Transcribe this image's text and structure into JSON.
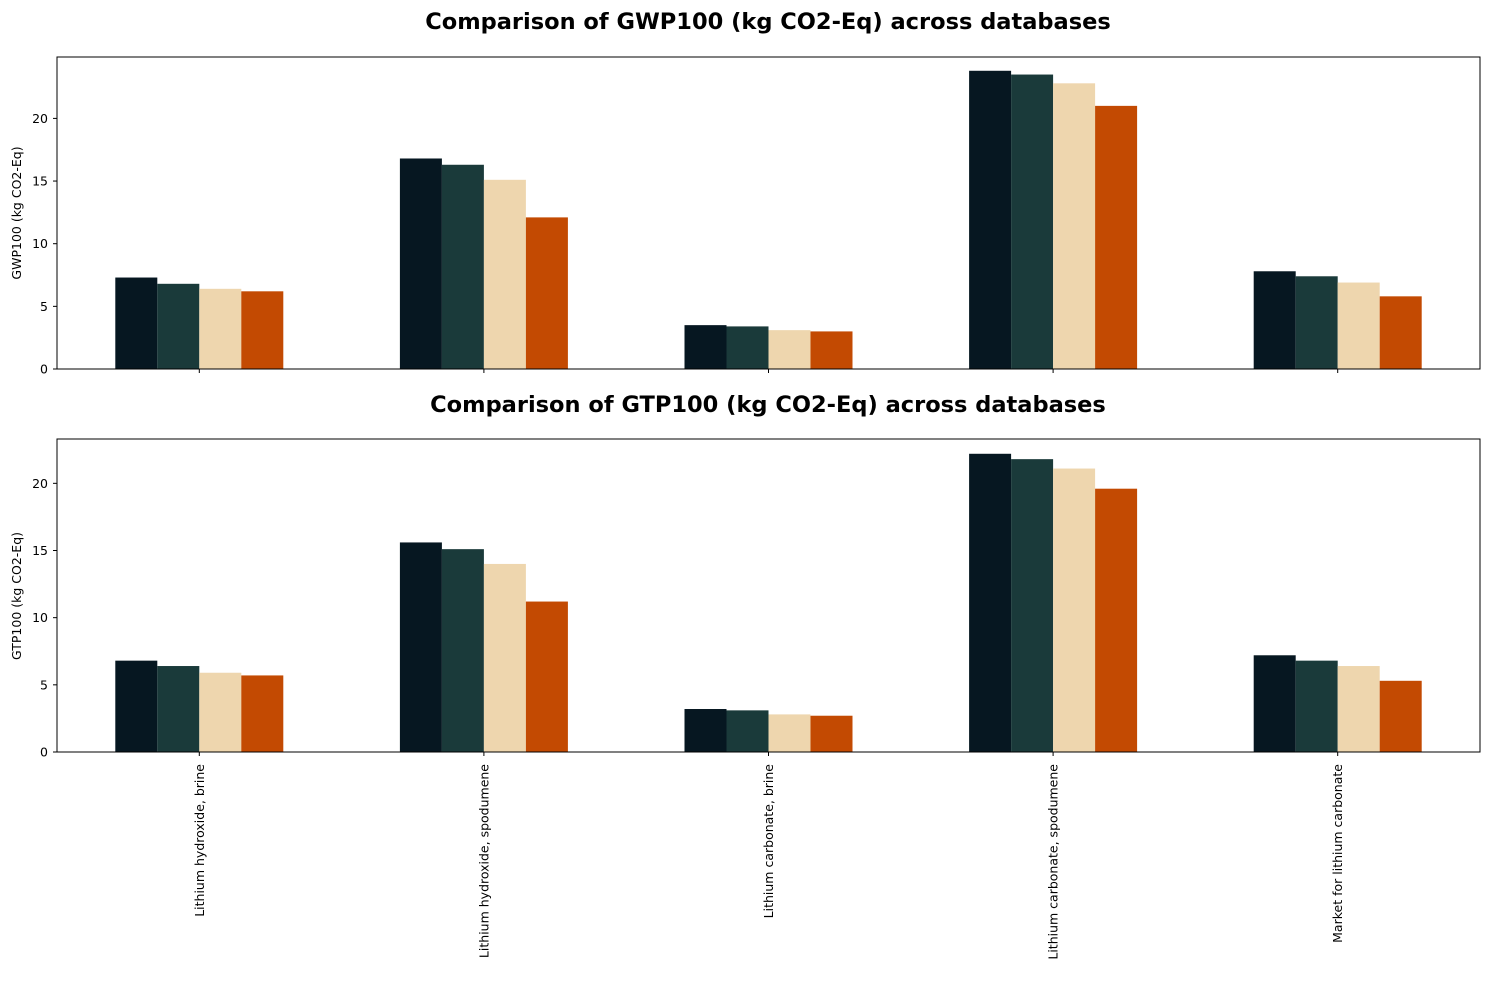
{
  "chart_data": [
    {
      "type": "bar",
      "title": "Comparison of GWP100 (kg CO2-Eq) across databases",
      "xlabel": "",
      "ylabel": "GWP100 (kg CO2-Eq)",
      "ylim": [
        0,
        24.9
      ],
      "yticks": [
        0,
        5,
        10,
        15,
        20
      ],
      "show_category_labels": false,
      "categories": [
        "Lithium hydroxide, brine",
        "Lithium hydroxide, spodumene",
        "Lithium carbonate, brine",
        "Lithium carbonate, spodumene",
        "Market for lithium carbonate"
      ],
      "series": [
        {
          "color": "#061721",
          "values": [
            7.3,
            16.8,
            3.5,
            23.8,
            7.8
          ]
        },
        {
          "color": "#1a3a3a",
          "values": [
            6.8,
            16.3,
            3.4,
            23.5,
            7.4
          ]
        },
        {
          "color": "#eed6ae",
          "values": [
            6.4,
            15.1,
            3.1,
            22.8,
            6.9
          ]
        },
        {
          "color": "#c34a02",
          "values": [
            6.2,
            12.1,
            3.0,
            21.0,
            5.8
          ]
        }
      ]
    },
    {
      "type": "bar",
      "title": "Comparison of GTP100 (kg CO2-Eq) across databases",
      "xlabel": "",
      "ylabel": "GTP100 (kg CO2-Eq)",
      "ylim": [
        0,
        23.3
      ],
      "yticks": [
        0,
        5,
        10,
        15,
        20
      ],
      "show_category_labels": true,
      "categories": [
        "Lithium hydroxide, brine",
        "Lithium hydroxide, spodumene",
        "Lithium carbonate, brine",
        "Lithium carbonate, spodumene",
        "Market for lithium carbonate"
      ],
      "series": [
        {
          "color": "#061721",
          "values": [
            6.8,
            15.6,
            3.2,
            22.2,
            7.2
          ]
        },
        {
          "color": "#1a3a3a",
          "values": [
            6.4,
            15.1,
            3.1,
            21.8,
            6.8
          ]
        },
        {
          "color": "#eed6ae",
          "values": [
            5.9,
            14.0,
            2.8,
            21.1,
            6.4
          ]
        },
        {
          "color": "#c34a02",
          "values": [
            5.7,
            11.2,
            2.7,
            19.6,
            5.3
          ]
        }
      ]
    }
  ]
}
